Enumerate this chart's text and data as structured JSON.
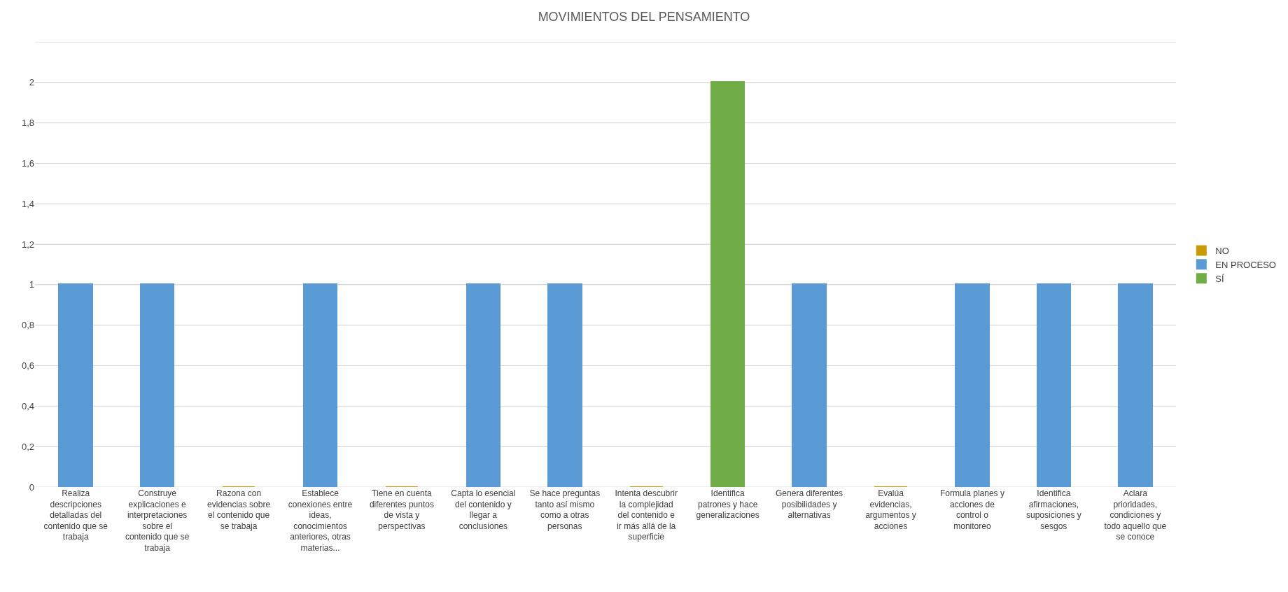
{
  "chart_data": {
    "type": "bar",
    "title": "MOVIMIENTOS DEL PENSAMIENTO",
    "stacked": true,
    "grid": "y",
    "legend": "right",
    "categories": [
      "Realiza descripciones detalladas del contenido que se trabaja",
      "Construye explicaciones e interpretaciones sobre el contenido que se trabaja",
      "Razona con evidencias sobre el contenido que se trabaja",
      "Establece conexiones entre ideas, conocimientos anteriores, otras materias...",
      "Tiene en cuenta diferentes puntos de vista y perspectivas",
      "Capta lo esencial del contenido y llegar a conclusiones",
      "Se hace preguntas tanto así mismo como a otras personas",
      "Intenta descubrir la complejidad del contenido e ir más allá de la superficie",
      "Identifica patrones y hace generalizaciones",
      "Genera diferentes posibilidades y alternativas",
      "Evalúa evidencias, argumentos y acciones",
      "Formula planes y acciones de control o monitoreo",
      "Identifica afirmaciones, suposiciones y sesgos",
      "Aclara prioridades, condiciones y todo aquello que se conoce"
    ],
    "series": [
      {
        "name": "NO",
        "color": "#c99a06",
        "values": [
          null,
          null,
          0,
          null,
          0,
          null,
          null,
          0,
          null,
          null,
          0,
          null,
          null,
          null
        ]
      },
      {
        "name": "EN PROCESO",
        "color": "#5b9bd5",
        "values": [
          1,
          1,
          null,
          1,
          null,
          1,
          1,
          null,
          null,
          1,
          null,
          1,
          1,
          1
        ]
      },
      {
        "name": "SÍ",
        "color": "#70ad47",
        "values": [
          null,
          null,
          null,
          null,
          null,
          null,
          null,
          null,
          2,
          null,
          null,
          null,
          null,
          null
        ]
      }
    ],
    "ylim": [
      0,
      2.2
    ],
    "yticks": [
      0,
      {
        "value": 0.2,
        "label": "0,2"
      },
      {
        "value": 0.4,
        "label": "0,4"
      },
      {
        "value": 0.6,
        "label": "0,6"
      },
      {
        "value": 0.8,
        "label": "0,8"
      },
      1,
      {
        "value": 1.2,
        "label": "1,2"
      },
      {
        "value": 1.4,
        "label": "1,4"
      },
      {
        "value": 1.6,
        "label": "1,6"
      },
      {
        "value": 1.8,
        "label": "1,8"
      },
      2,
      {
        "value": 2.2,
        "label": null
      }
    ]
  }
}
